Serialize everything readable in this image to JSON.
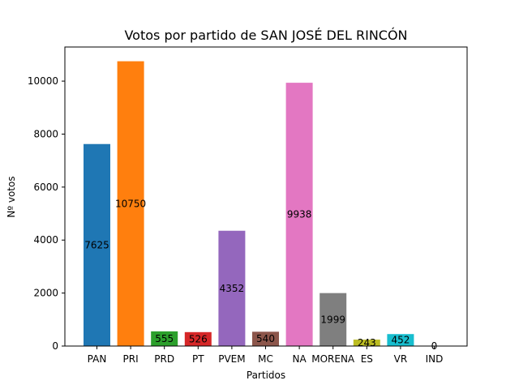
{
  "chart_data": {
    "type": "bar",
    "title": "Votos por partido de SAN JOSÉ DEL RINCÓN",
    "xlabel": "Partidos",
    "ylabel": "Nº votos",
    "categories": [
      "PAN",
      "PRI",
      "PRD",
      "PT",
      "PVEM",
      "MC",
      "NA",
      "MORENA",
      "ES",
      "VR",
      "IND"
    ],
    "values": [
      7625,
      10750,
      555,
      526,
      4352,
      540,
      9938,
      1999,
      243,
      452,
      0
    ],
    "colors": [
      "#1f77b4",
      "#ff7f0e",
      "#2ca02c",
      "#d62728",
      "#9467bd",
      "#8c564b",
      "#e377c2",
      "#7f7f7f",
      "#bcbd22",
      "#17becf",
      "#1f77b4"
    ],
    "yticks": [
      0,
      2000,
      4000,
      6000,
      8000,
      10000
    ],
    "ylim": [
      0,
      11287.5
    ],
    "grid": false,
    "legend": false
  }
}
